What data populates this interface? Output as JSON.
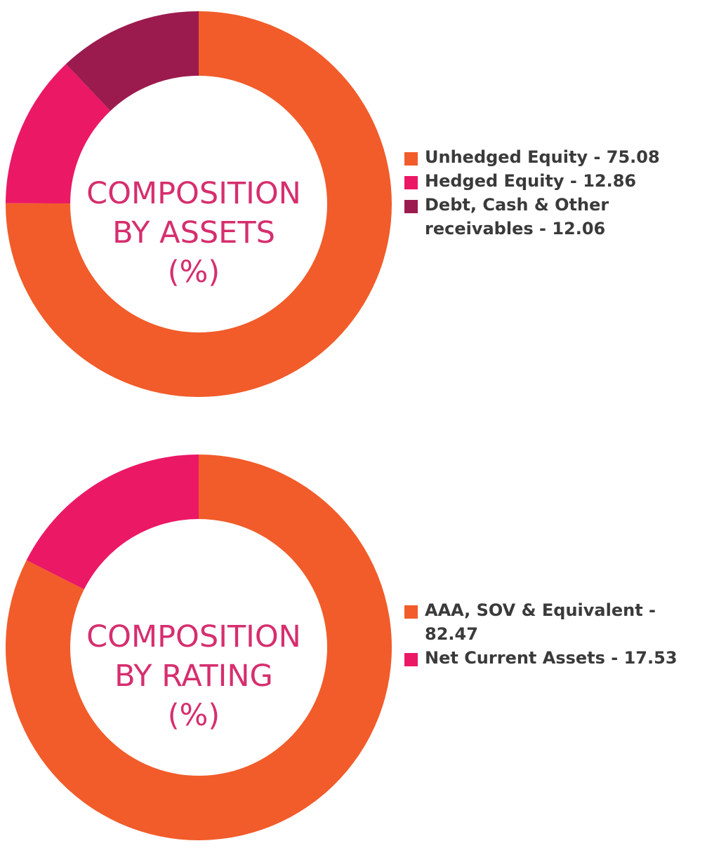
{
  "chart_data": [
    {
      "type": "pie",
      "donut": true,
      "center_label": [
        "COMPOSITION",
        "BY ASSETS",
        "(%)"
      ],
      "slices": [
        {
          "label": "Unhedged Equity",
          "value": 75.08,
          "legend_text": "Unhedged Equity - 75.08",
          "color": "#f15c2a"
        },
        {
          "label": "Hedged Equity",
          "value": 12.86,
          "legend_text": "Hedged Equity - 12.86",
          "color": "#eb1866"
        },
        {
          "label": "Debt, Cash & Other receivables",
          "value": 12.06,
          "legend_text": "Debt, Cash & Other receivables - 12.06",
          "color": "#9b1b4f"
        }
      ],
      "legend_position": "right"
    },
    {
      "type": "pie",
      "donut": true,
      "center_label": [
        "COMPOSITION",
        "BY RATING",
        "(%)"
      ],
      "slices": [
        {
          "label": "AAA, SOV & Equivalent",
          "value": 82.47,
          "legend_text": "AAA, SOV & Equivalent - 82.47",
          "color": "#f15c2a"
        },
        {
          "label": "Net Current Assets",
          "value": 17.53,
          "legend_text": "Net Current Assets - 17.53",
          "color": "#eb1866"
        }
      ],
      "legend_position": "right"
    }
  ]
}
